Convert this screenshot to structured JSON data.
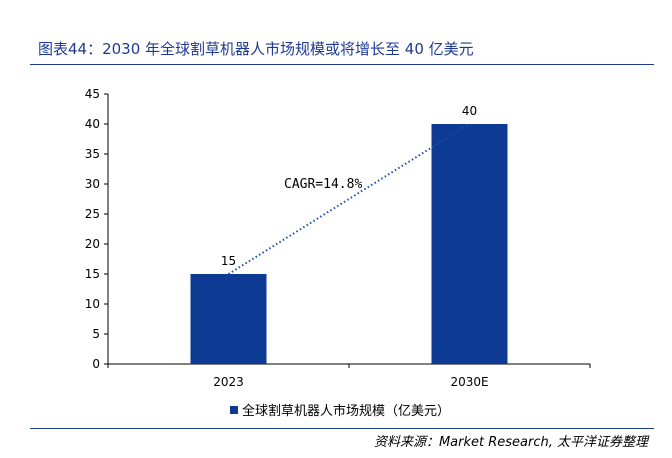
{
  "header": {
    "title": "图表44：2030 年全球割草机器人市场规模或将增长至 40 亿美元"
  },
  "footer": {
    "source": "资料来源：Market Research, 太平洋证券整理"
  },
  "chart_data": {
    "type": "bar",
    "categories": [
      "2023",
      "2030E"
    ],
    "series": [
      {
        "name": "全球割草机器人市场规模（亿美元）",
        "values": [
          15,
          40
        ],
        "color": "#0d3a93"
      }
    ],
    "data_labels": [
      "15",
      "40"
    ],
    "annotation": "CAGR=14.8%",
    "ylim": [
      0,
      45
    ],
    "yticks": [
      0,
      5,
      10,
      15,
      20,
      25,
      30,
      35,
      40,
      45
    ],
    "grid": false,
    "legend_position": "bottom"
  }
}
